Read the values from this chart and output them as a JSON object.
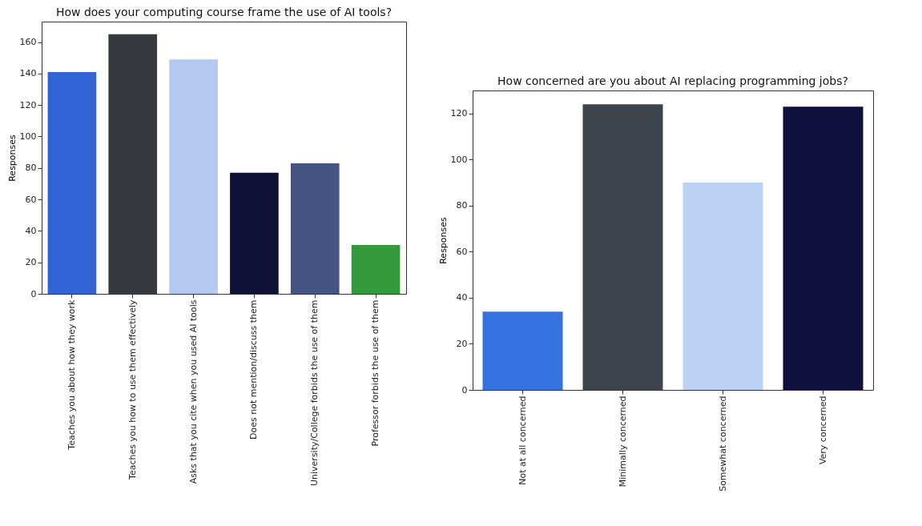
{
  "chart_data": [
    {
      "type": "bar",
      "title": "How does your computing course frame the use of AI tools?",
      "ylabel": "Responses",
      "categories": [
        "Teaches you about how they work",
        "Teaches you how to use them effectively",
        "Asks that you cite when you used AI tools",
        "Does not mention/discuss them",
        "University/College forbids the use of them",
        "Professor forbids the use of them"
      ],
      "values": [
        141,
        165,
        149,
        77,
        83,
        31
      ],
      "colors": [
        "#3264d8",
        "#363a3f",
        "#b4c8f0",
        "#111037",
        "#455485",
        "#329a3a"
      ],
      "ylim": [
        0,
        173
      ],
      "yticks": [
        0,
        20,
        40,
        60,
        80,
        100,
        120,
        140,
        160
      ],
      "grid": false
    },
    {
      "type": "bar",
      "title": "How concerned are you about AI replacing programming jobs?",
      "ylabel": "Responses",
      "categories": [
        "Not at all concerned",
        "Minimally concerned",
        "Somewhat concerned",
        "Very concerned"
      ],
      "values": [
        34,
        124,
        90,
        123
      ],
      "colors": [
        "#3472e0",
        "#3d444b",
        "#bbd2f5",
        "#0f103c"
      ],
      "ylim": [
        0,
        130
      ],
      "yticks": [
        0,
        20,
        40,
        60,
        80,
        100,
        120
      ],
      "grid": false
    }
  ]
}
